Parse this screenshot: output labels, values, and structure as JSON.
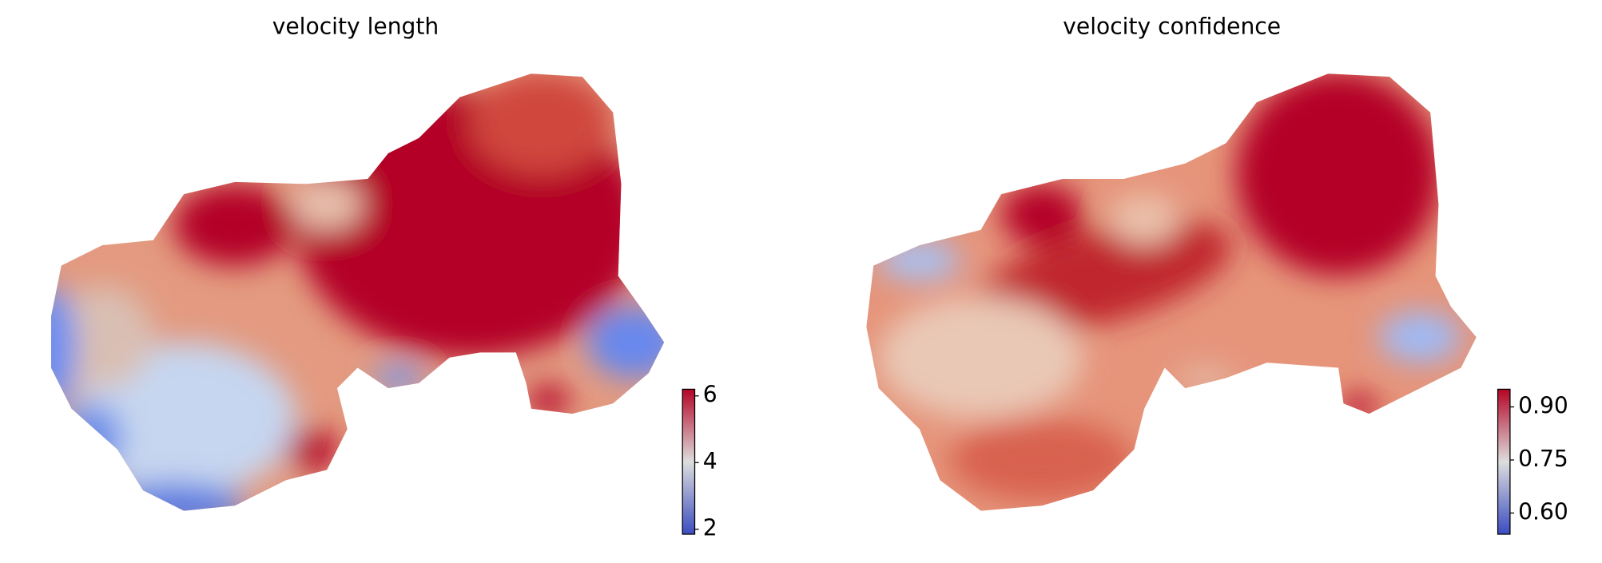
{
  "chart_data": [
    {
      "type": "scatter",
      "title": "velocity length",
      "colorbar": {
        "clim": [
          1.85,
          6.2
        ],
        "ticks": [
          2,
          4,
          6
        ],
        "colormap": [
          "#3b4cc0",
          "#dddddd",
          "#b40426"
        ]
      }
    },
    {
      "type": "scatter",
      "title": "velocity confidence",
      "colorbar": {
        "clim": [
          0.54,
          0.95
        ],
        "ticks": [
          {
            "value": 0.6,
            "label": "0.60"
          },
          {
            "value": 0.75,
            "label": "0.75"
          },
          {
            "value": 0.9,
            "label": "0.90"
          }
        ],
        "colormap": [
          "#3b4cc0",
          "#dddddd",
          "#b40426"
        ]
      }
    }
  ]
}
